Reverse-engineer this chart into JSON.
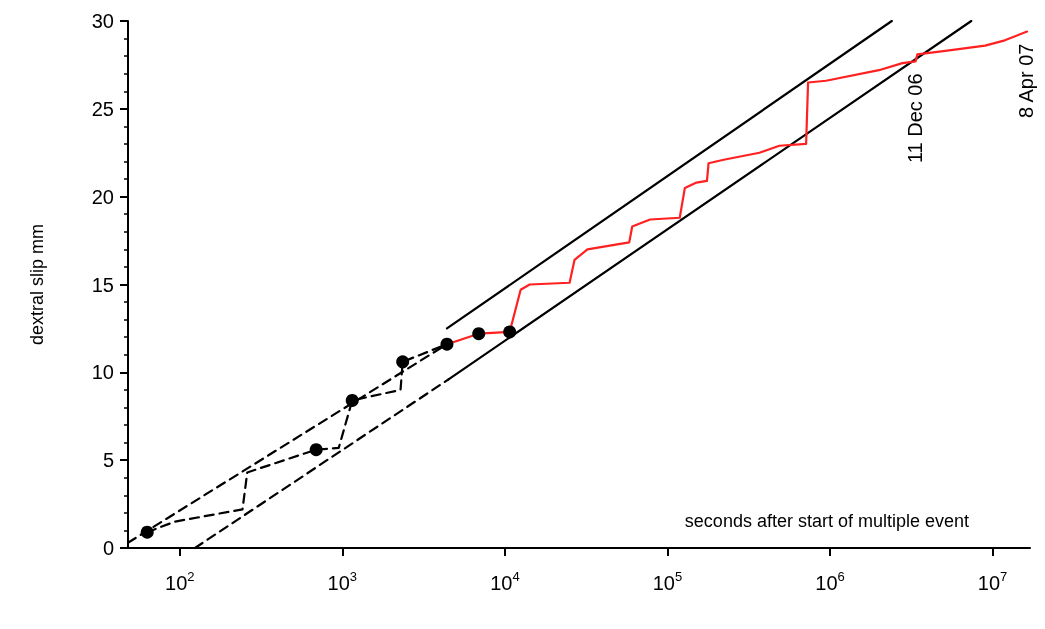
{
  "chart_data": {
    "type": "line",
    "xlabel": "seconds after start of multiple event",
    "ylabel": "dextral slip mm",
    "log": "x",
    "grid": false,
    "xlim": [
      48,
      17000000
    ],
    "xticks": [
      {
        "value": 100,
        "label": "10$^{2}$"
      },
      {
        "value": 1000,
        "label": "10$^{3}$"
      },
      {
        "value": 10000,
        "label": "10$^{4}$"
      },
      {
        "value": 100000,
        "label": "10$^{5}$"
      },
      {
        "value": 1000000,
        "label": "10$^{6}$"
      },
      {
        "value": 10000000,
        "label": "10$^{7}$"
      }
    ],
    "ylim": [
      0,
      30
    ],
    "yticks": [
      0,
      5,
      10,
      15,
      20,
      25,
      30
    ],
    "series": [
      {
        "color": "#000000",
        "line_style": "dashed",
        "marker": "none",
        "x": [
          48,
          4400
        ],
        "values": [
          0.3,
          11.6
        ]
      },
      {
        "color": "#000000",
        "line_style": "dashed",
        "marker": "none",
        "x": [
          124,
          4500
        ],
        "values": [
          0,
          9.6
        ]
      },
      {
        "color": "#000000",
        "line_style": "solid",
        "marker": "none",
        "x": [
          4500,
          7400000
        ],
        "values": [
          9.6,
          30
        ]
      },
      {
        "color": "#000000",
        "line_style": "solid",
        "marker": "none",
        "x": [
          4400,
          2400000
        ],
        "values": [
          12.5,
          30
        ]
      },
      {
        "color": "#000000",
        "line_style": "dashed",
        "marker": "none",
        "x": [
          63,
          93,
          243,
          260,
          690,
          950,
          1150,
          2280,
          2350,
          4400
        ],
        "values": [
          0.9,
          1.5,
          2.2,
          4.3,
          5.6,
          5.7,
          8.4,
          9.0,
          10.6,
          11.6
        ]
      },
      {
        "color": "#ff2020",
        "line_style": "solid",
        "marker": "none",
        "x": [
          4400,
          6900,
          10700,
          12500,
          14200,
          25000,
          26800,
          32200,
          58200,
          60700,
          78200,
          119000,
          128000,
          151000,
          175000,
          179000,
          222000,
          368000,
          488000,
          713000,
          733000,
          946000,
          2000000,
          2790000,
          3360000,
          3450000,
          5120000,
          9000000,
          11900000,
          16300000
        ],
        "values": [
          11.6,
          12.2,
          12.3,
          14.7,
          15.0,
          15.1,
          16.4,
          17.0,
          17.4,
          18.3,
          18.7,
          18.8,
          20.5,
          20.8,
          20.9,
          21.9,
          22.1,
          22.5,
          22.9,
          23.0,
          26.5,
          26.6,
          27.2,
          27.6,
          27.7,
          28.1,
          28.3,
          28.6,
          28.9,
          29.4
        ]
      },
      {
        "type": "scatter",
        "color": "#000000",
        "marker": "circle",
        "x": [
          63,
          690,
          1150,
          2350,
          4400,
          6900,
          10700
        ],
        "values": [
          0.9,
          5.6,
          8.4,
          10.6,
          11.6,
          12.2,
          12.3
        ]
      }
    ],
    "annotations": [
      {
        "text": "11 Dec 06",
        "x": 3400000,
        "y": 27.7
      },
      {
        "text": "8 Apr 07",
        "x": 16300000,
        "y": 29.4
      }
    ]
  }
}
